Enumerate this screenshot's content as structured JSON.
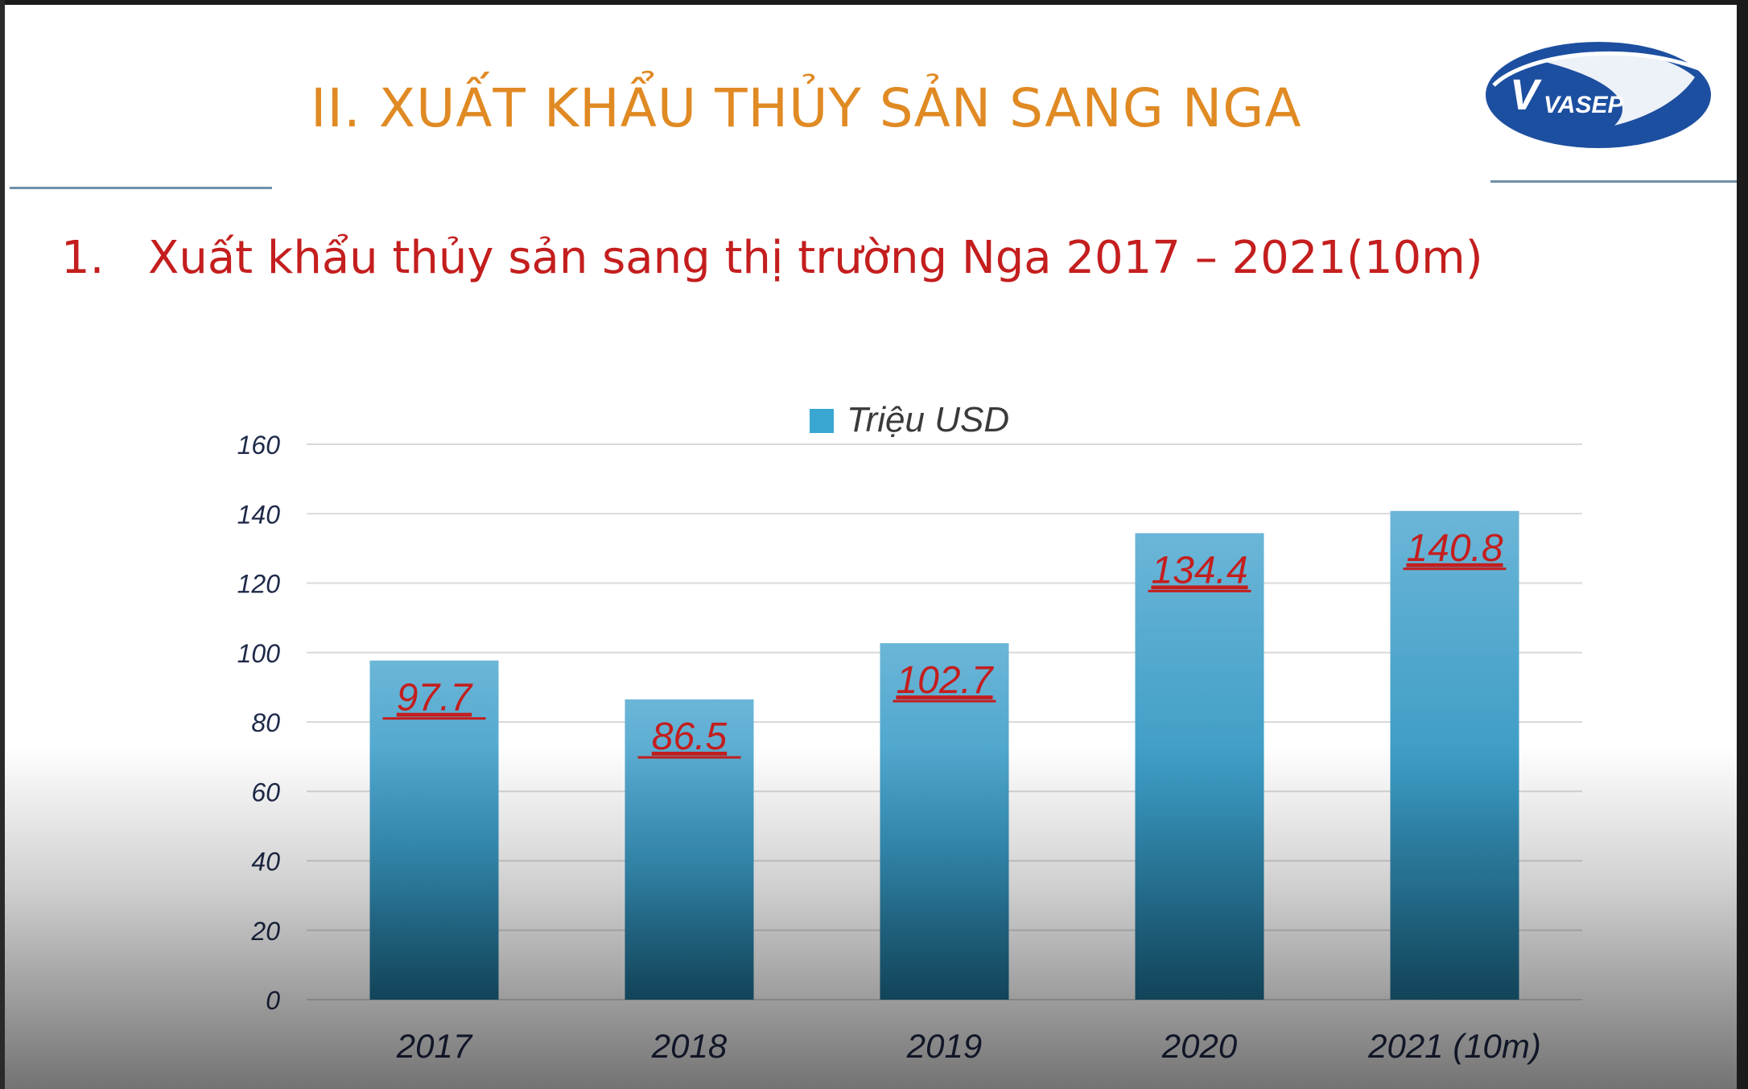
{
  "slide": {
    "title": "II. XUẤT KHẨU THỦY SẢN SANG NGA",
    "subtitle_number": "1.",
    "subtitle_text": "Xuất khẩu thủy sản sang thị trường Nga 2017 – 2021(10m)",
    "logo_text": "VASEP"
  },
  "colors": {
    "title": "#e08a24",
    "subtitle": "#c41e1e",
    "bar_top": "#6bb6d8",
    "bar_bottom": "#1e6f92",
    "data_label": "#c41e1e",
    "tick_label": "#1f2a4a",
    "grid": "#d9d9d9",
    "logo": "#1d4fa0"
  },
  "chart_data": {
    "type": "bar",
    "categories": [
      "2017",
      "2018",
      "2019",
      "2020",
      "2021 (10m)"
    ],
    "series": [
      {
        "name": "Triệu USD",
        "values": [
          97.7,
          86.5,
          102.7,
          134.4,
          140.8
        ]
      }
    ],
    "data_labels": [
      "97.7",
      "86.5",
      "102.7",
      "134.4",
      "140.8"
    ],
    "ylim": [
      0,
      160
    ],
    "yticks": [
      0,
      20,
      40,
      60,
      80,
      100,
      120,
      140,
      160
    ],
    "grid": true,
    "legend_position": "top-center"
  }
}
